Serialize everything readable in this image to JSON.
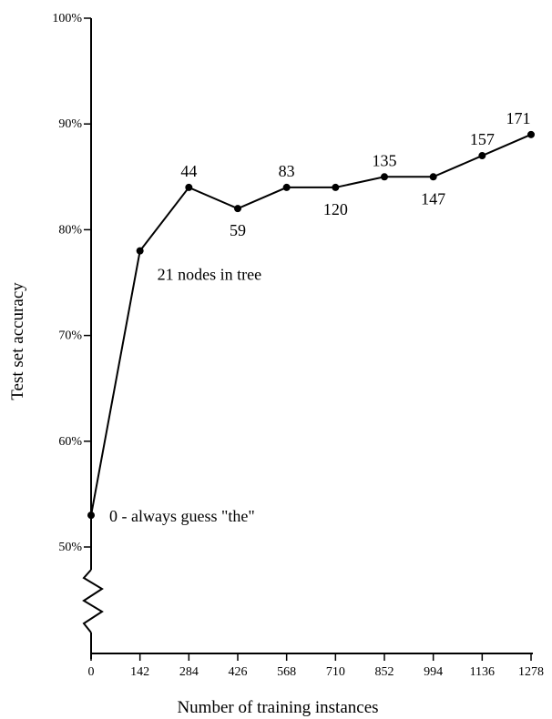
{
  "chart_data": {
    "type": "line",
    "xlabel": "Number of training instances",
    "ylabel": "Test set accuracy",
    "x": [
      0,
      142,
      284,
      426,
      568,
      710,
      852,
      994,
      1136,
      1278
    ],
    "x_tick_labels": [
      "0",
      "142",
      "284",
      "426",
      "568",
      "710",
      "852",
      "994",
      "1136",
      "1278"
    ],
    "y_ticks": [
      50,
      60,
      70,
      80,
      90,
      100
    ],
    "y_tick_labels": [
      "50%",
      "60%",
      "70%",
      "80%",
      "90%",
      "100%"
    ],
    "ylim": [
      50,
      100
    ],
    "xlim": [
      0,
      1278
    ],
    "axis_break": "below 50%",
    "grid": false,
    "series": [
      {
        "values": [
          53,
          78,
          84,
          82,
          84,
          84,
          85,
          85,
          87,
          89
        ],
        "point_labels": [
          "0 - always guess \"the\"",
          "21 nodes in tree",
          "44",
          "59",
          "83",
          "120",
          "135",
          "147",
          "157",
          "171"
        ],
        "label_positions": [
          "right",
          "below-right",
          "above",
          "below",
          "above",
          "below",
          "above",
          "below",
          "above",
          "above"
        ]
      }
    ],
    "colors": {
      "line": "#000000",
      "text": "#000000",
      "background": "#ffffff"
    }
  }
}
